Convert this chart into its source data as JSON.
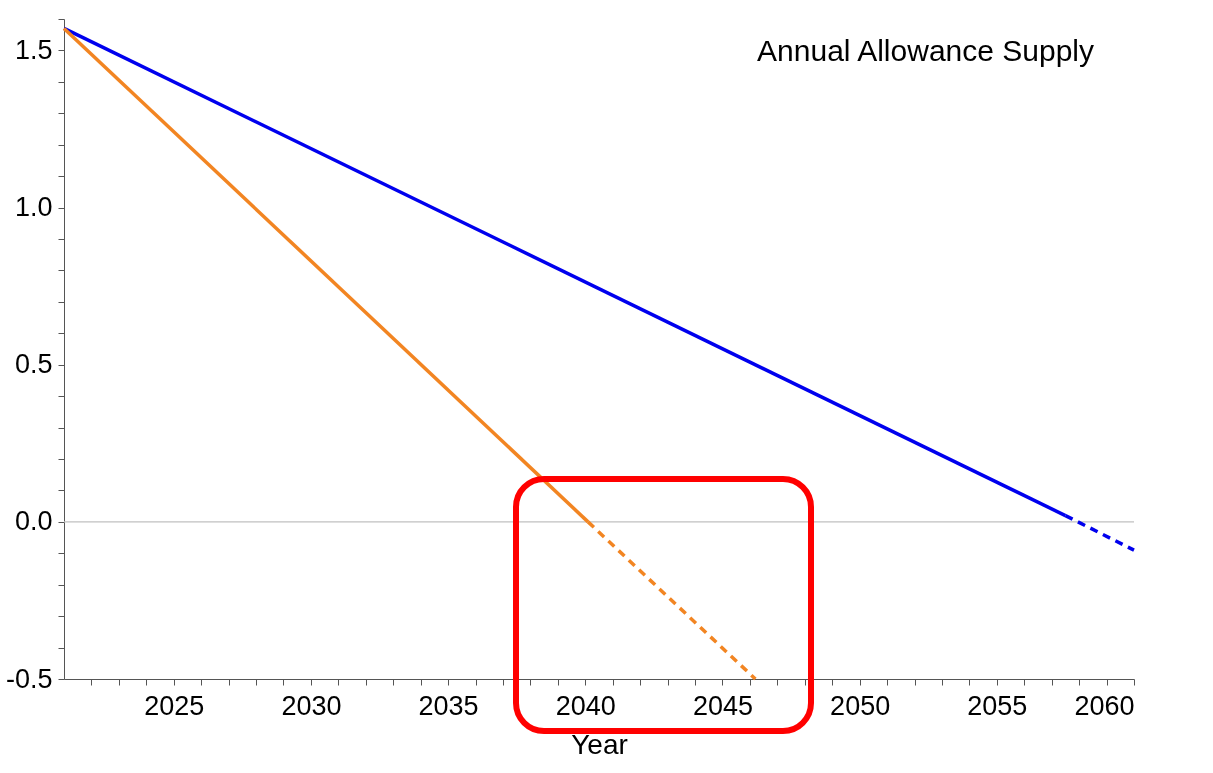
{
  "chart_data": {
    "type": "line",
    "title": "Annual Allowance Supply",
    "xlabel": "Year",
    "xlim": [
      2021,
      2060
    ],
    "ylim": [
      -0.5,
      1.6
    ],
    "xticks": [
      {
        "value": 2022,
        "label": null
      },
      {
        "value": 2023,
        "label": null
      },
      {
        "value": 2024,
        "label": null
      },
      2025,
      {
        "value": 2026,
        "label": null
      },
      {
        "value": 2027,
        "label": null
      },
      {
        "value": 2028,
        "label": null
      },
      {
        "value": 2029,
        "label": null
      },
      2030,
      {
        "value": 2031,
        "label": null
      },
      {
        "value": 2032,
        "label": null
      },
      {
        "value": 2033,
        "label": null
      },
      {
        "value": 2034,
        "label": null
      },
      2035,
      {
        "value": 2036,
        "label": null
      },
      {
        "value": 2037,
        "label": null
      },
      {
        "value": 2038,
        "label": null
      },
      {
        "value": 2039,
        "label": null
      },
      2040,
      {
        "value": 2041,
        "label": null
      },
      {
        "value": 2042,
        "label": null
      },
      {
        "value": 2043,
        "label": null
      },
      {
        "value": 2044,
        "label": null
      },
      2045,
      {
        "value": 2046,
        "label": null
      },
      {
        "value": 2047,
        "label": null
      },
      {
        "value": 2048,
        "label": null
      },
      {
        "value": 2049,
        "label": null
      },
      2050,
      {
        "value": 2051,
        "label": null
      },
      {
        "value": 2052,
        "label": null
      },
      {
        "value": 2053,
        "label": null
      },
      {
        "value": 2054,
        "label": null
      },
      2055,
      {
        "value": 2056,
        "label": null
      },
      {
        "value": 2057,
        "label": null
      },
      {
        "value": 2058,
        "label": null
      },
      {
        "value": 2059,
        "label": null
      },
      2060
    ],
    "yticks": [
      {
        "value": -0.5,
        "label": "-0.5"
      },
      {
        "value": -0.4,
        "label": null
      },
      {
        "value": -0.3,
        "label": null
      },
      {
        "value": -0.2,
        "label": null
      },
      {
        "value": -0.1,
        "label": null
      },
      {
        "value": 0,
        "label": "0.0"
      },
      {
        "value": 0.1,
        "label": null
      },
      {
        "value": 0.2,
        "label": null
      },
      {
        "value": 0.3,
        "label": null
      },
      {
        "value": 0.4,
        "label": null
      },
      0.5,
      {
        "value": 0.6,
        "label": null
      },
      {
        "value": 0.7,
        "label": null
      },
      {
        "value": 0.8,
        "label": null
      },
      {
        "value": 0.9,
        "label": null
      },
      {
        "value": 1,
        "label": "1.0"
      },
      {
        "value": 1.1,
        "label": null
      },
      {
        "value": 1.2,
        "label": null
      },
      {
        "value": 1.3,
        "label": null
      },
      {
        "value": 1.4,
        "label": null
      },
      1.5,
      {
        "value": 1.6,
        "label": null
      }
    ],
    "series": [
      {
        "color": "#0000ee",
        "line_style": "solid",
        "x": [
          2021,
          2057.5
        ],
        "values": [
          1.57,
          0.02
        ]
      },
      {
        "color": "#0000ee",
        "line_style": "dashed",
        "x": [
          2057.5,
          2060
        ],
        "values": [
          0.02,
          -0.09
        ]
      },
      {
        "color": "#f28522",
        "line_style": "solid",
        "x": [
          2021,
          2040.1
        ],
        "values": [
          1.57,
          0
        ]
      },
      {
        "color": "#f28522",
        "line_style": "dashed",
        "x": [
          2040.1,
          2046.2
        ],
        "values": [
          0,
          -0.5
        ]
      }
    ],
    "ref_lines": [
      {
        "axis": "y",
        "value": 0,
        "color": "#c0c0c0"
      }
    ],
    "grid": false,
    "marker": "none"
  }
}
